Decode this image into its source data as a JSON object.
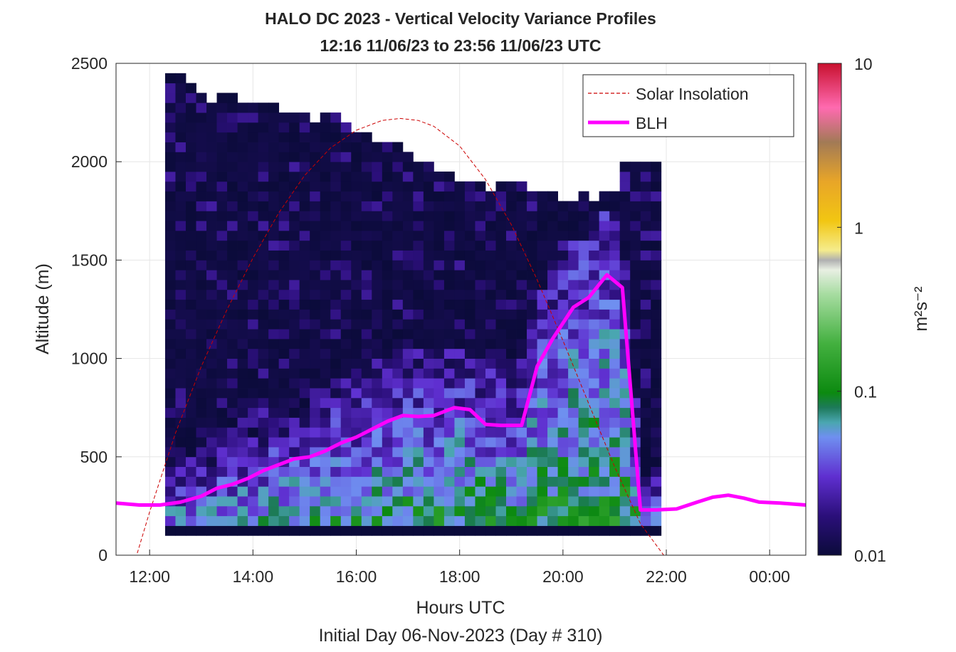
{
  "chart_data": {
    "type": "heatmap",
    "title": "HALO DC 2023 - Vertical Velocity Variance Profiles",
    "subtitle": "12:16 11/06/23 to 23:56 11/06/23  UTC",
    "xlabel": "Hours UTC",
    "xlabel2": "Initial Day 06-Nov-2023 (Day # 310)",
    "ylabel": "Altitude (m)",
    "xlim_hours": [
      11.35,
      24.7
    ],
    "ylim": [
      0,
      2500
    ],
    "x_ticks": [
      {
        "value": 12,
        "label": "12:00"
      },
      {
        "value": 14,
        "label": "14:00"
      },
      {
        "value": 16,
        "label": "16:00"
      },
      {
        "value": 18,
        "label": "18:00"
      },
      {
        "value": 20,
        "label": "20:00"
      },
      {
        "value": 22,
        "label": "22:00"
      },
      {
        "value": 24,
        "label": "00:00"
      }
    ],
    "y_ticks": [
      0,
      500,
      1000,
      1500,
      2000,
      2500
    ],
    "colorbar": {
      "label": "m²s⁻²",
      "scale": "log",
      "range": [
        0.01,
        10
      ],
      "ticks": [
        {
          "value": 0.01,
          "label": "0.01"
        },
        {
          "value": 0.1,
          "label": "0.1"
        },
        {
          "value": 1,
          "label": "1"
        },
        {
          "value": 10,
          "label": "10"
        }
      ]
    },
    "grid": true,
    "legend": {
      "position": "top-right",
      "entries": [
        {
          "name": "Solar Insolation",
          "style": "dashed",
          "color": "#cc0000"
        },
        {
          "name": "BLH",
          "style": "solid",
          "color": "#ff00ff"
        }
      ]
    },
    "heatmap": {
      "x_start": 12.3,
      "x_step": 0.2,
      "altitude_start": 100,
      "altitude_step": 50,
      "columns": 48,
      "top_altitudes": [
        2450,
        2450,
        2400,
        2350,
        2300,
        2350,
        2350,
        2300,
        2300,
        2300,
        2300,
        2250,
        2250,
        2250,
        2200,
        2250,
        2250,
        2200,
        2150,
        2150,
        2100,
        2100,
        2100,
        2050,
        2000,
        2000,
        1950,
        1950,
        1900,
        1900,
        1900,
        1850,
        1900,
        1900,
        1900,
        1850,
        1850,
        1850,
        1800,
        1800,
        1850,
        1800,
        1850,
        1850,
        2000,
        2000,
        2000,
        2000
      ],
      "description": "Log10 vertical-velocity variance: high (0.2-1 m2s-2) near surface with convective growth up to ~1500 m around 20:30-21:00 UTC; background ~0.01 aloft."
    },
    "series": [
      {
        "name": "Solar Insolation",
        "x_hours": [
          11.35,
          11.75,
          12.0,
          12.5,
          13.0,
          13.5,
          14.0,
          14.5,
          15.0,
          15.5,
          16.0,
          16.5,
          16.85,
          17.2,
          17.5,
          18.0,
          18.5,
          19.0,
          19.5,
          20.0,
          20.5,
          21.0,
          21.5,
          21.95,
          22.5,
          23.0,
          23.5,
          24.0,
          24.7
        ],
        "altitudes": [
          0,
          0,
          220,
          620,
          960,
          1250,
          1510,
          1740,
          1930,
          2070,
          2160,
          2210,
          2220,
          2210,
          2180,
          2080,
          1910,
          1680,
          1400,
          1090,
          770,
          450,
          160,
          0,
          0,
          0,
          0,
          0,
          0
        ]
      },
      {
        "name": "BLH",
        "x_hours": [
          11.35,
          11.8,
          12.2,
          12.6,
          13.0,
          13.3,
          13.6,
          13.9,
          14.2,
          14.5,
          14.8,
          15.1,
          15.4,
          15.7,
          16.0,
          16.3,
          16.6,
          16.9,
          17.2,
          17.5,
          17.9,
          18.2,
          18.5,
          18.8,
          19.2,
          19.5,
          19.8,
          20.2,
          20.5,
          20.85,
          21.15,
          21.5,
          21.8,
          22.2,
          22.6,
          22.9,
          23.2,
          23.5,
          23.8,
          24.2,
          24.7
        ],
        "altitudes": [
          265,
          255,
          255,
          270,
          300,
          340,
          360,
          390,
          430,
          460,
          490,
          500,
          530,
          570,
          600,
          640,
          680,
          710,
          705,
          710,
          750,
          740,
          665,
          660,
          660,
          960,
          1100,
          1260,
          1310,
          1425,
          1360,
          230,
          230,
          235,
          270,
          295,
          305,
          290,
          270,
          265,
          255
        ]
      }
    ]
  }
}
